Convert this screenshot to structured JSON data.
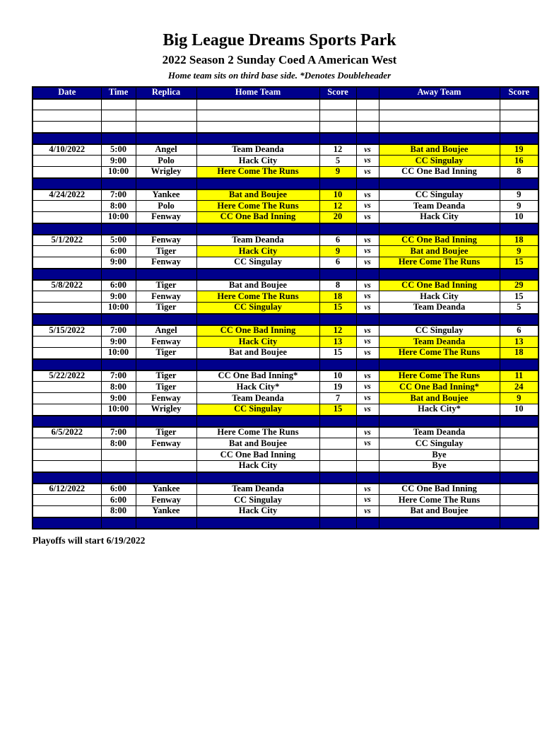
{
  "page": {
    "title": "Big League Dreams Sports Park",
    "subtitle": "2022 Season 2 Sunday Coed A American West",
    "note": "Home team sits on third base side.  *Denotes Doubleheader",
    "footer": "Playoffs will start 6/19/2022"
  },
  "colors": {
    "header_bg": "#00008B",
    "header_text": "#FFFFFF",
    "highlight": "#FFFF00",
    "border": "#000000"
  },
  "table": {
    "columns": [
      "Date",
      "Time",
      "Replica",
      "Home Team",
      "Score",
      "",
      "Away Team",
      "Score"
    ],
    "blank_rows": 3,
    "vs_label": "vs",
    "blocks": [
      {
        "date": "4/10/2022",
        "games": [
          {
            "time": "5:00",
            "replica": "Angel",
            "home": "Team Deanda",
            "home_score": "12",
            "home_hl": false,
            "vs": true,
            "away": "Bat and Boujee",
            "away_score": "19",
            "away_hl": true
          },
          {
            "time": "9:00",
            "replica": "Polo",
            "home": "Hack City",
            "home_score": "5",
            "home_hl": false,
            "vs": true,
            "away": "CC Singulay",
            "away_score": "16",
            "away_hl": true
          },
          {
            "time": "10:00",
            "replica": "Wrigley",
            "home": "Here Come The Runs",
            "home_score": "9",
            "home_hl": true,
            "vs": true,
            "away": "CC One Bad Inning",
            "away_score": "8",
            "away_hl": false
          }
        ]
      },
      {
        "date": "4/24/2022",
        "games": [
          {
            "time": "7:00",
            "replica": "Yankee",
            "home": "Bat and Boujee",
            "home_score": "10",
            "home_hl": true,
            "vs": true,
            "away": "CC Singulay",
            "away_score": "9",
            "away_hl": false
          },
          {
            "time": "8:00",
            "replica": "Polo",
            "home": "Here Come The Runs",
            "home_score": "12",
            "home_hl": true,
            "vs": true,
            "away": "Team Deanda",
            "away_score": "9",
            "away_hl": false
          },
          {
            "time": "10:00",
            "replica": "Fenway",
            "home": "CC One Bad Inning",
            "home_score": "20",
            "home_hl": true,
            "vs": true,
            "away": "Hack City",
            "away_score": "10",
            "away_hl": false
          }
        ]
      },
      {
        "date": "5/1/2022",
        "games": [
          {
            "time": "5:00",
            "replica": "Fenway",
            "home": "Team Deanda",
            "home_score": "6",
            "home_hl": false,
            "vs": true,
            "away": "CC One Bad Inning",
            "away_score": "18",
            "away_hl": true
          },
          {
            "time": "6:00",
            "replica": "Tiger",
            "home": "Hack City",
            "home_score": "9",
            "home_hl": true,
            "vs": true,
            "away": "Bat and Boujee",
            "away_score": "9",
            "away_hl": true
          },
          {
            "time": "9:00",
            "replica": "Fenway",
            "home": "CC Singulay",
            "home_score": "6",
            "home_hl": false,
            "vs": true,
            "away": "Here Come The Runs",
            "away_score": "15",
            "away_hl": true
          }
        ]
      },
      {
        "date": "5/8/2022",
        "games": [
          {
            "time": "6:00",
            "replica": "Tiger",
            "home": "Bat and Boujee",
            "home_score": "8",
            "home_hl": false,
            "vs": true,
            "away": "CC One Bad Inning",
            "away_score": "29",
            "away_hl": true
          },
          {
            "time": "9:00",
            "replica": "Fenway",
            "home": "Here Come The Runs",
            "home_score": "18",
            "home_hl": true,
            "vs": true,
            "away": "Hack City",
            "away_score": "15",
            "away_hl": false
          },
          {
            "time": "10:00",
            "replica": "Tiger",
            "home": "CC Singulay",
            "home_score": "15",
            "home_hl": true,
            "vs": true,
            "away": "Team Deanda",
            "away_score": "5",
            "away_hl": false
          }
        ]
      },
      {
        "date": "5/15/2022",
        "games": [
          {
            "time": "7:00",
            "replica": "Angel",
            "home": "CC One Bad Inning",
            "home_score": "12",
            "home_hl": true,
            "vs": true,
            "away": "CC Singulay",
            "away_score": "6",
            "away_hl": false
          },
          {
            "time": "9:00",
            "replica": "Fenway",
            "home": "Hack City",
            "home_score": "13",
            "home_hl": true,
            "vs": true,
            "away": "Team Deanda",
            "away_score": "13",
            "away_hl": true
          },
          {
            "time": "10:00",
            "replica": "Tiger",
            "home": "Bat and Boujee",
            "home_score": "15",
            "home_hl": false,
            "vs": true,
            "away": "Here Come The Runs",
            "away_score": "18",
            "away_hl": true
          }
        ]
      },
      {
        "date": "5/22/2022",
        "games": [
          {
            "time": "7:00",
            "replica": "Tiger",
            "home": "CC One Bad Inning*",
            "home_score": "10",
            "home_hl": false,
            "vs": true,
            "away": "Here Come The Runs",
            "away_score": "11",
            "away_hl": true
          },
          {
            "time": "8:00",
            "replica": "Tiger",
            "home": "Hack City*",
            "home_score": "19",
            "home_hl": false,
            "vs": true,
            "away": "CC One Bad Inning*",
            "away_score": "24",
            "away_hl": true
          },
          {
            "time": "9:00",
            "replica": "Fenway",
            "home": "Team Deanda",
            "home_score": "7",
            "home_hl": false,
            "vs": true,
            "away": "Bat and Boujee",
            "away_score": "9",
            "away_hl": true
          },
          {
            "time": "10:00",
            "replica": "Wrigley",
            "home": "CC Singulay",
            "home_score": "15",
            "home_hl": true,
            "vs": true,
            "away": "Hack City*",
            "away_score": "10",
            "away_hl": false
          }
        ]
      },
      {
        "date": "6/5/2022",
        "games": [
          {
            "time": "7:00",
            "replica": "Tiger",
            "home": "Here Come The Runs",
            "home_score": "",
            "home_hl": false,
            "vs": true,
            "away": "Team Deanda",
            "away_score": "",
            "away_hl": false
          },
          {
            "time": "8:00",
            "replica": "Fenway",
            "home": "Bat and Boujee",
            "home_score": "",
            "home_hl": false,
            "vs": true,
            "away": "CC Singulay",
            "away_score": "",
            "away_hl": false
          },
          {
            "time": "",
            "replica": "",
            "home": "CC One Bad Inning",
            "home_score": "",
            "home_hl": false,
            "vs": false,
            "away": "Bye",
            "away_score": "",
            "away_hl": false
          },
          {
            "time": "",
            "replica": "",
            "home": "Hack City",
            "home_score": "",
            "home_hl": false,
            "vs": false,
            "away": "Bye",
            "away_score": "",
            "away_hl": false
          }
        ]
      },
      {
        "date": "6/12/2022",
        "games": [
          {
            "time": "6:00",
            "replica": "Yankee",
            "home": "Team Deanda",
            "home_score": "",
            "home_hl": false,
            "vs": true,
            "away": "CC One Bad Inning",
            "away_score": "",
            "away_hl": false
          },
          {
            "time": "6:00",
            "replica": "Fenway",
            "home": "CC Singulay",
            "home_score": "",
            "home_hl": false,
            "vs": true,
            "away": "Here Come The Runs",
            "away_score": "",
            "away_hl": false
          },
          {
            "time": "8:00",
            "replica": "Yankee",
            "home": "Hack City",
            "home_score": "",
            "home_hl": false,
            "vs": true,
            "away": "Bat and Boujee",
            "away_score": "",
            "away_hl": false
          }
        ]
      }
    ]
  }
}
